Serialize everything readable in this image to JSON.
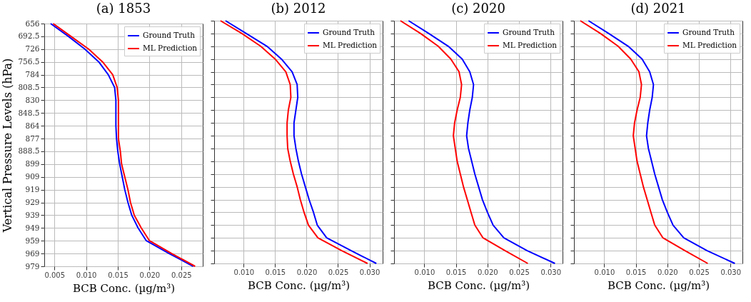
{
  "chart_data": [
    {
      "type": "line",
      "title": "(a) 1853",
      "xlabel": "BCB Conc. (µg/m³)",
      "ylabel": "Vertical Pressure Levels (hPa)",
      "orientation": "horizontal",
      "grid": true,
      "legend": "top right",
      "line_style": "solid",
      "categories": [
        "656",
        "692.5",
        "726",
        "756.5",
        "784",
        "808.5",
        "830",
        "848.5",
        "864",
        "877",
        "888.5",
        "899",
        "909",
        "919",
        "929",
        "939",
        "949",
        "959",
        "969",
        "979"
      ],
      "xlim": [
        0.0034,
        0.0284
      ],
      "xticks": [
        0.005,
        {
          "value": 0.01,
          "label": "0.010"
        },
        0.015,
        {
          "value": 0.02,
          "label": "0.020"
        },
        0.025
      ],
      "series": [
        {
          "name": "Ground Truth",
          "color": "#0000ff",
          "values": [
            0.0044,
            0.0072,
            0.0098,
            0.012,
            0.0135,
            0.0145,
            0.0147,
            0.0147,
            0.0147,
            0.0148,
            0.015,
            0.0153,
            0.0157,
            0.0161,
            0.0166,
            0.0172,
            0.0182,
            0.0195,
            0.0231,
            0.0269
          ]
        },
        {
          "name": "ML Prediction",
          "color": "#ff0000",
          "values": [
            0.0048,
            0.0076,
            0.0104,
            0.0126,
            0.0142,
            0.0149,
            0.0151,
            0.0151,
            0.0151,
            0.0151,
            0.0154,
            0.0156,
            0.0161,
            0.0166,
            0.017,
            0.0176,
            0.0187,
            0.02,
            0.0235,
            0.0272
          ]
        }
      ]
    },
    {
      "type": "line",
      "title": "(b) 2012",
      "xlabel": "BCB Conc. (µg/m³)",
      "orientation": "horizontal",
      "grid": true,
      "legend": "top right",
      "line_style": "solid",
      "tick_labels": "x",
      "categories": [
        "656",
        "692.5",
        "726",
        "756.5",
        "784",
        "808.5",
        "830",
        "848.5",
        "864",
        "877",
        "888.5",
        "899",
        "909",
        "919",
        "929",
        "939",
        "949",
        "959",
        "969",
        "979"
      ],
      "xlim": [
        0.0053,
        0.0321
      ],
      "xticks": [
        {
          "value": 0.01,
          "label": "0.010"
        },
        0.015,
        {
          "value": 0.02,
          "label": "0.020"
        },
        0.025,
        {
          "value": 0.03,
          "label": "0.030"
        }
      ],
      "series": [
        {
          "name": "Ground Truth",
          "color": "#0000ff",
          "values": [
            0.0071,
            0.0104,
            0.0137,
            0.016,
            0.0177,
            0.0185,
            0.0186,
            0.0183,
            0.018,
            0.018,
            0.0183,
            0.0187,
            0.0192,
            0.0198,
            0.0204,
            0.0211,
            0.0217,
            0.0232,
            0.0271,
            0.0311
          ]
        },
        {
          "name": "ML Prediction",
          "color": "#ff0000",
          "values": [
            0.0063,
            0.0097,
            0.0127,
            0.015,
            0.0167,
            0.0174,
            0.0175,
            0.0171,
            0.0169,
            0.0169,
            0.017,
            0.0174,
            0.0179,
            0.0185,
            0.019,
            0.0196,
            0.0203,
            0.0218,
            0.0256,
            0.0297
          ]
        }
      ]
    },
    {
      "type": "line",
      "title": "(c) 2020",
      "xlabel": "BCB Conc. (µg/m³)",
      "orientation": "horizontal",
      "grid": true,
      "legend": "top right",
      "line_style": "solid",
      "tick_labels": "x",
      "categories": [
        "656",
        "692.5",
        "726",
        "756.5",
        "784",
        "808.5",
        "830",
        "848.5",
        "864",
        "877",
        "888.5",
        "899",
        "909",
        "919",
        "929",
        "939",
        "949",
        "959",
        "969",
        "979"
      ],
      "xlim": [
        0.0052,
        0.0319
      ],
      "xticks": [
        {
          "value": 0.01,
          "label": "0.010"
        },
        0.015,
        {
          "value": 0.02,
          "label": "0.020"
        },
        0.025,
        {
          "value": 0.03,
          "label": "0.030"
        }
      ],
      "series": [
        {
          "name": "Ground Truth",
          "color": "#0000ff",
          "values": [
            0.0075,
            0.0107,
            0.0138,
            0.016,
            0.0172,
            0.0178,
            0.0176,
            0.0172,
            0.0169,
            0.0167,
            0.017,
            0.0175,
            0.018,
            0.0186,
            0.0192,
            0.02,
            0.0209,
            0.0226,
            0.0263,
            0.0307
          ]
        },
        {
          "name": "ML Prediction",
          "color": "#ff0000",
          "values": [
            0.0062,
            0.0094,
            0.0122,
            0.0142,
            0.0155,
            0.0159,
            0.0157,
            0.0152,
            0.0148,
            0.0146,
            0.0149,
            0.0152,
            0.0157,
            0.0162,
            0.0168,
            0.0174,
            0.018,
            0.0193,
            0.0228,
            0.0264
          ]
        }
      ]
    },
    {
      "type": "line",
      "title": "(d) 2021",
      "xlabel": "BCB Conc. (µg/m³)",
      "orientation": "horizontal",
      "grid": true,
      "legend": "top right",
      "line_style": "solid",
      "tick_labels": "x",
      "categories": [
        "656",
        "692.5",
        "726",
        "756.5",
        "784",
        "808.5",
        "830",
        "848.5",
        "864",
        "877",
        "888.5",
        "899",
        "909",
        "919",
        "929",
        "939",
        "949",
        "959",
        "969",
        "979"
      ],
      "xlim": [
        0.0052,
        0.0319
      ],
      "xticks": [
        {
          "value": 0.01,
          "label": "0.010"
        },
        0.015,
        {
          "value": 0.02,
          "label": "0.020"
        },
        0.025,
        {
          "value": 0.03,
          "label": "0.030"
        }
      ],
      "series": [
        {
          "name": "Ground Truth",
          "color": "#0000ff",
          "values": [
            0.0075,
            0.0107,
            0.0138,
            0.016,
            0.0172,
            0.0178,
            0.0176,
            0.0172,
            0.0169,
            0.0167,
            0.017,
            0.0175,
            0.018,
            0.0186,
            0.0192,
            0.02,
            0.0209,
            0.0226,
            0.0263,
            0.0307
          ]
        },
        {
          "name": "ML Prediction",
          "color": "#ff0000",
          "values": [
            0.0062,
            0.0094,
            0.0122,
            0.0142,
            0.0155,
            0.0159,
            0.0157,
            0.0152,
            0.0148,
            0.0146,
            0.0149,
            0.0152,
            0.0157,
            0.0162,
            0.0168,
            0.0174,
            0.018,
            0.0193,
            0.0228,
            0.0264
          ]
        }
      ]
    }
  ]
}
